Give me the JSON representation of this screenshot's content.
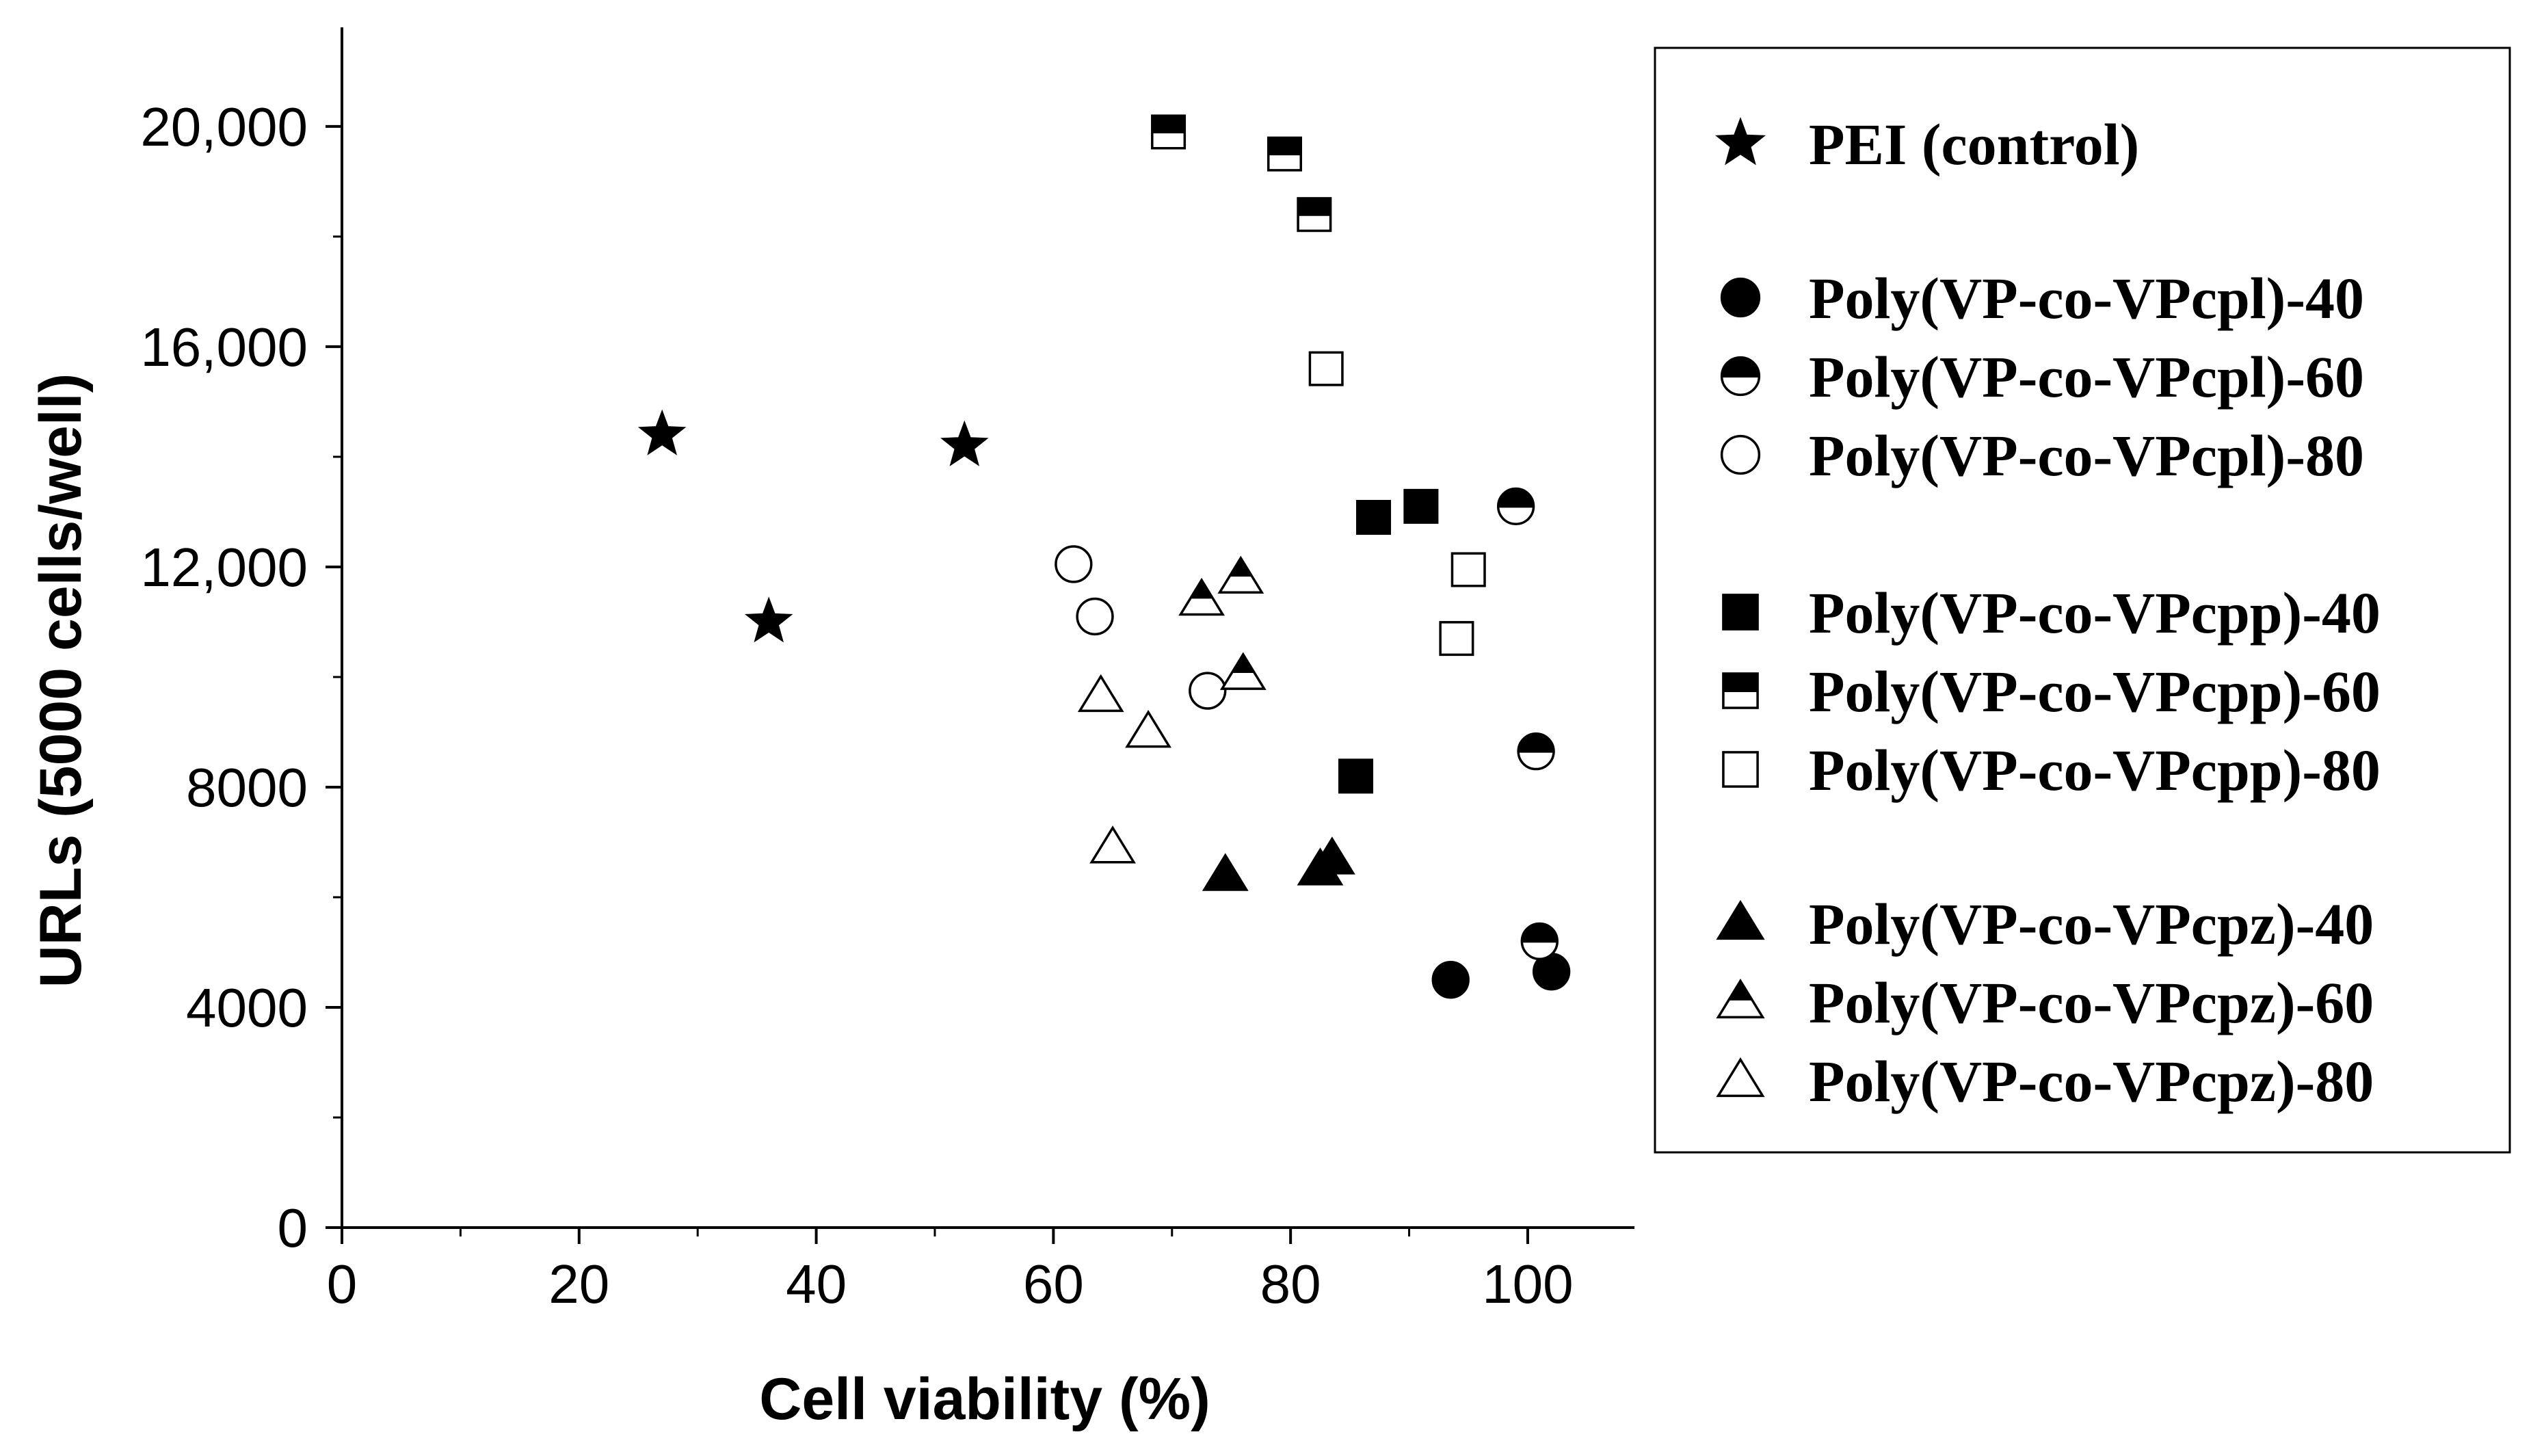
{
  "chart_data": {
    "type": "scatter",
    "xlabel": "Cell viability (%)",
    "ylabel": "URLs (5000 cells/well)",
    "xlim": [
      0,
      109
    ],
    "ylim": [
      0,
      21800
    ],
    "x_ticks": [
      0,
      20,
      40,
      60,
      80,
      100
    ],
    "x_tick_labels": [
      "0",
      "20",
      "40",
      "60",
      "80",
      "100"
    ],
    "y_ticks": [
      0,
      4000,
      8000,
      12000,
      16000,
      20000
    ],
    "y_tick_labels": [
      "0",
      "4000",
      "8000",
      "12,000",
      "16,000",
      "20,000"
    ],
    "grid": false,
    "legend_position": "right",
    "series": [
      {
        "name": "PEI (control)",
        "marker": "star",
        "fill": "full",
        "points": [
          [
            27,
            14400
          ],
          [
            36,
            11000
          ],
          [
            52.5,
            14200
          ]
        ]
      },
      {
        "name": "Poly(VP-co-VPcpl)-40",
        "marker": "circle",
        "fill": "full",
        "points": [
          [
            93.5,
            4500
          ],
          [
            102,
            4650
          ]
        ]
      },
      {
        "name": "Poly(VP-co-VPcpl)-60",
        "marker": "circle",
        "fill": "half",
        "points": [
          [
            99,
            13100
          ],
          [
            100.7,
            8650
          ],
          [
            101,
            5200
          ]
        ]
      },
      {
        "name": "Poly(VP-co-VPcpl)-80",
        "marker": "circle",
        "fill": "open",
        "points": [
          [
            61.7,
            12050
          ],
          [
            63.5,
            11100
          ],
          [
            73,
            9750
          ]
        ]
      },
      {
        "name": "Poly(VP-co-VPcpp)-40",
        "marker": "square",
        "fill": "full",
        "points": [
          [
            87,
            12900
          ],
          [
            91,
            13100
          ],
          [
            85.5,
            8200
          ]
        ]
      },
      {
        "name": "Poly(VP-co-VPcpp)-60",
        "marker": "square",
        "fill": "half",
        "points": [
          [
            69.7,
            19900
          ],
          [
            79.5,
            19500
          ],
          [
            82,
            18400
          ]
        ]
      },
      {
        "name": "Poly(VP-co-VPcpp)-80",
        "marker": "square",
        "fill": "open",
        "points": [
          [
            83,
            15600
          ],
          [
            95,
            11950
          ],
          [
            94,
            10700
          ]
        ]
      },
      {
        "name": "Poly(VP-co-VPcpz)-40",
        "marker": "triangle",
        "fill": "full",
        "points": [
          [
            74.5,
            6400
          ],
          [
            83.5,
            6700
          ],
          [
            82.5,
            6500
          ]
        ]
      },
      {
        "name": "Poly(VP-co-VPcpz)-60",
        "marker": "triangle",
        "fill": "half",
        "points": [
          [
            72.5,
            11400
          ],
          [
            75.8,
            11800
          ],
          [
            76,
            10050
          ]
        ]
      },
      {
        "name": "Poly(VP-co-VPcpz)-80",
        "marker": "triangle",
        "fill": "open",
        "points": [
          [
            64,
            9650
          ],
          [
            68,
            9000
          ],
          [
            65,
            6900
          ]
        ]
      }
    ]
  }
}
